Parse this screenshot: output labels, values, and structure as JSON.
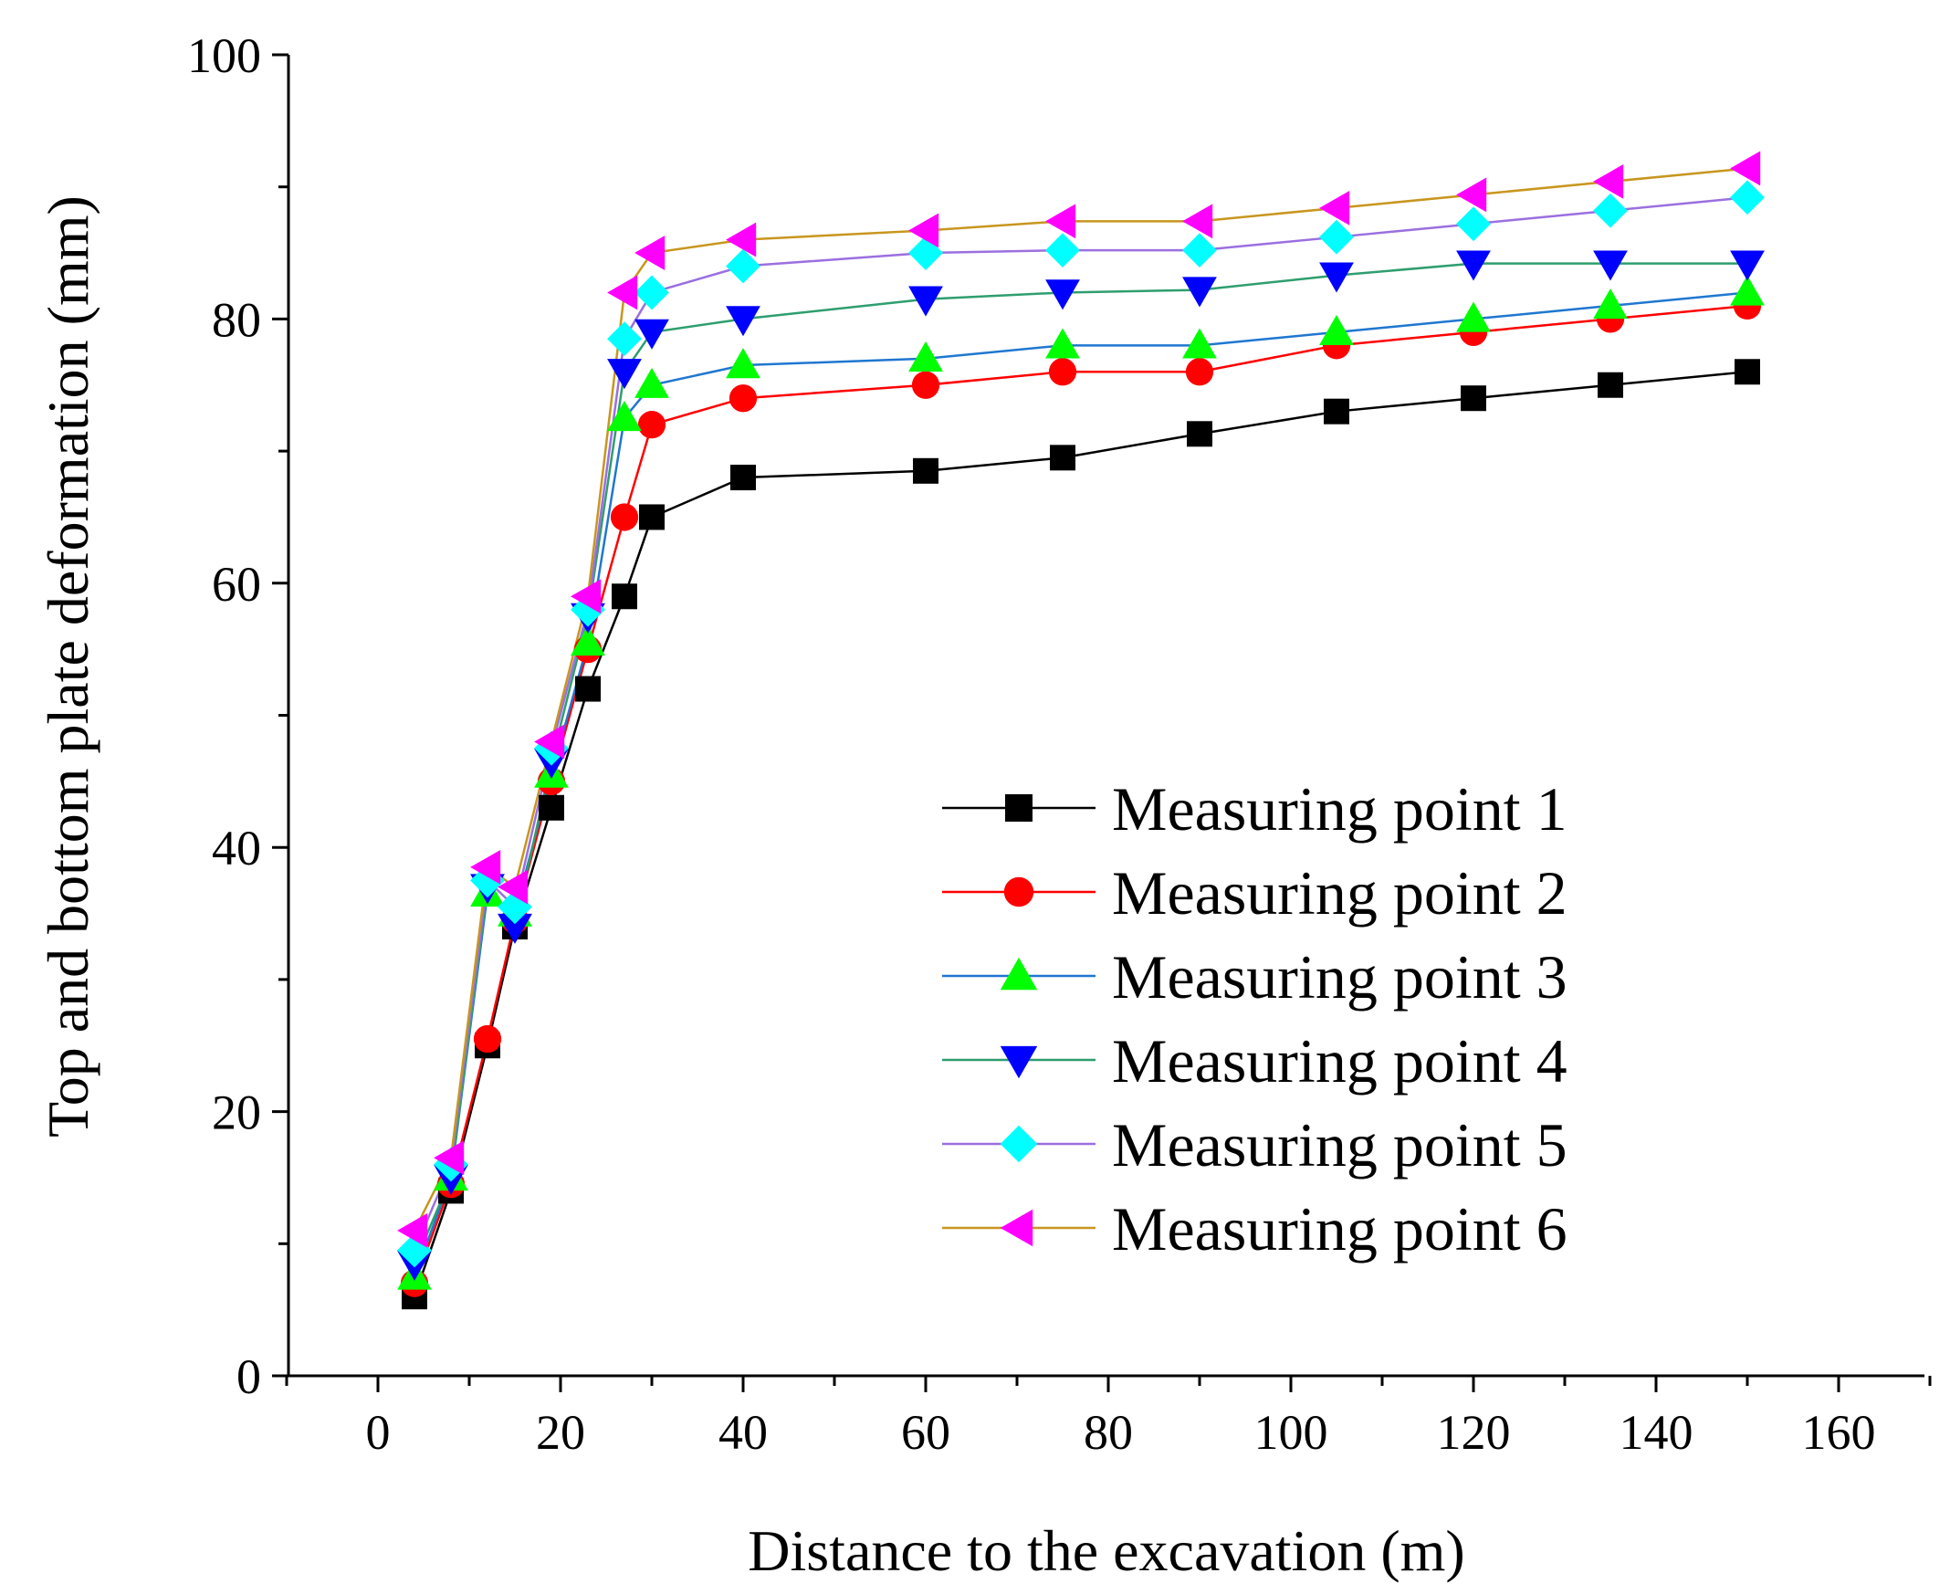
{
  "chart_data": {
    "type": "line",
    "title": "",
    "xlabel": "Distance to the excavation (m)",
    "ylabel": "Top and bottom plate deformation (mm)",
    "xlim": [
      -10,
      170
    ],
    "ylim": [
      0,
      100
    ],
    "xticks": [
      0,
      20,
      40,
      60,
      80,
      100,
      120,
      140,
      160
    ],
    "yticks": [
      0,
      20,
      40,
      60,
      80,
      100
    ],
    "x": [
      4,
      8,
      12,
      15,
      19,
      23,
      27,
      30,
      40,
      60,
      75,
      90,
      105,
      120,
      135,
      150
    ],
    "legend_position": "lower-right",
    "series": [
      {
        "name": "Measuring point 1",
        "marker": "square",
        "marker_color": "#000000",
        "line_color": "#000000",
        "values": [
          6,
          14,
          25,
          34,
          43,
          52,
          59,
          65,
          68,
          68.5,
          69.5,
          71.3,
          73,
          74,
          75,
          76
        ]
      },
      {
        "name": "Measuring point 2",
        "marker": "circle",
        "marker_color": "#ff0000",
        "line_color": "#ff0000",
        "values": [
          7,
          14.5,
          25.5,
          34.5,
          45,
          55,
          65,
          72,
          74,
          75,
          76,
          76,
          78,
          79,
          80,
          81
        ]
      },
      {
        "name": "Measuring point 3",
        "marker": "triangle-up",
        "marker_color": "#00ff00",
        "line_color": "#1f77d0",
        "values": [
          7.5,
          15,
          36.5,
          35,
          45.5,
          55.5,
          72.5,
          75,
          76.5,
          77,
          78,
          78,
          79,
          80,
          81,
          82
        ]
      },
      {
        "name": "Measuring point 4",
        "marker": "triangle-down",
        "marker_color": "#0000ff",
        "line_color": "#2e9e6e",
        "values": [
          8.5,
          15,
          37,
          34,
          46.5,
          57.5,
          76,
          79,
          80,
          81.5,
          82,
          82.2,
          83.3,
          84.2,
          84.2,
          84.2
        ]
      },
      {
        "name": "Measuring point 5",
        "marker": "diamond",
        "marker_color": "#00ffff",
        "line_color": "#9b6fe0",
        "values": [
          9.5,
          16,
          37.5,
          35.5,
          47.5,
          58,
          78.5,
          82,
          84,
          85,
          85.2,
          85.2,
          86.2,
          87.2,
          88.2,
          89.2
        ]
      },
      {
        "name": "Measuring point 6",
        "marker": "triangle-left",
        "marker_color": "#ff00ff",
        "line_color": "#c8961e",
        "values": [
          11,
          16.5,
          38.5,
          37,
          48,
          59,
          82,
          85,
          86,
          86.7,
          87.4,
          87.4,
          88.4,
          89.4,
          90.4,
          91.4
        ]
      }
    ]
  }
}
